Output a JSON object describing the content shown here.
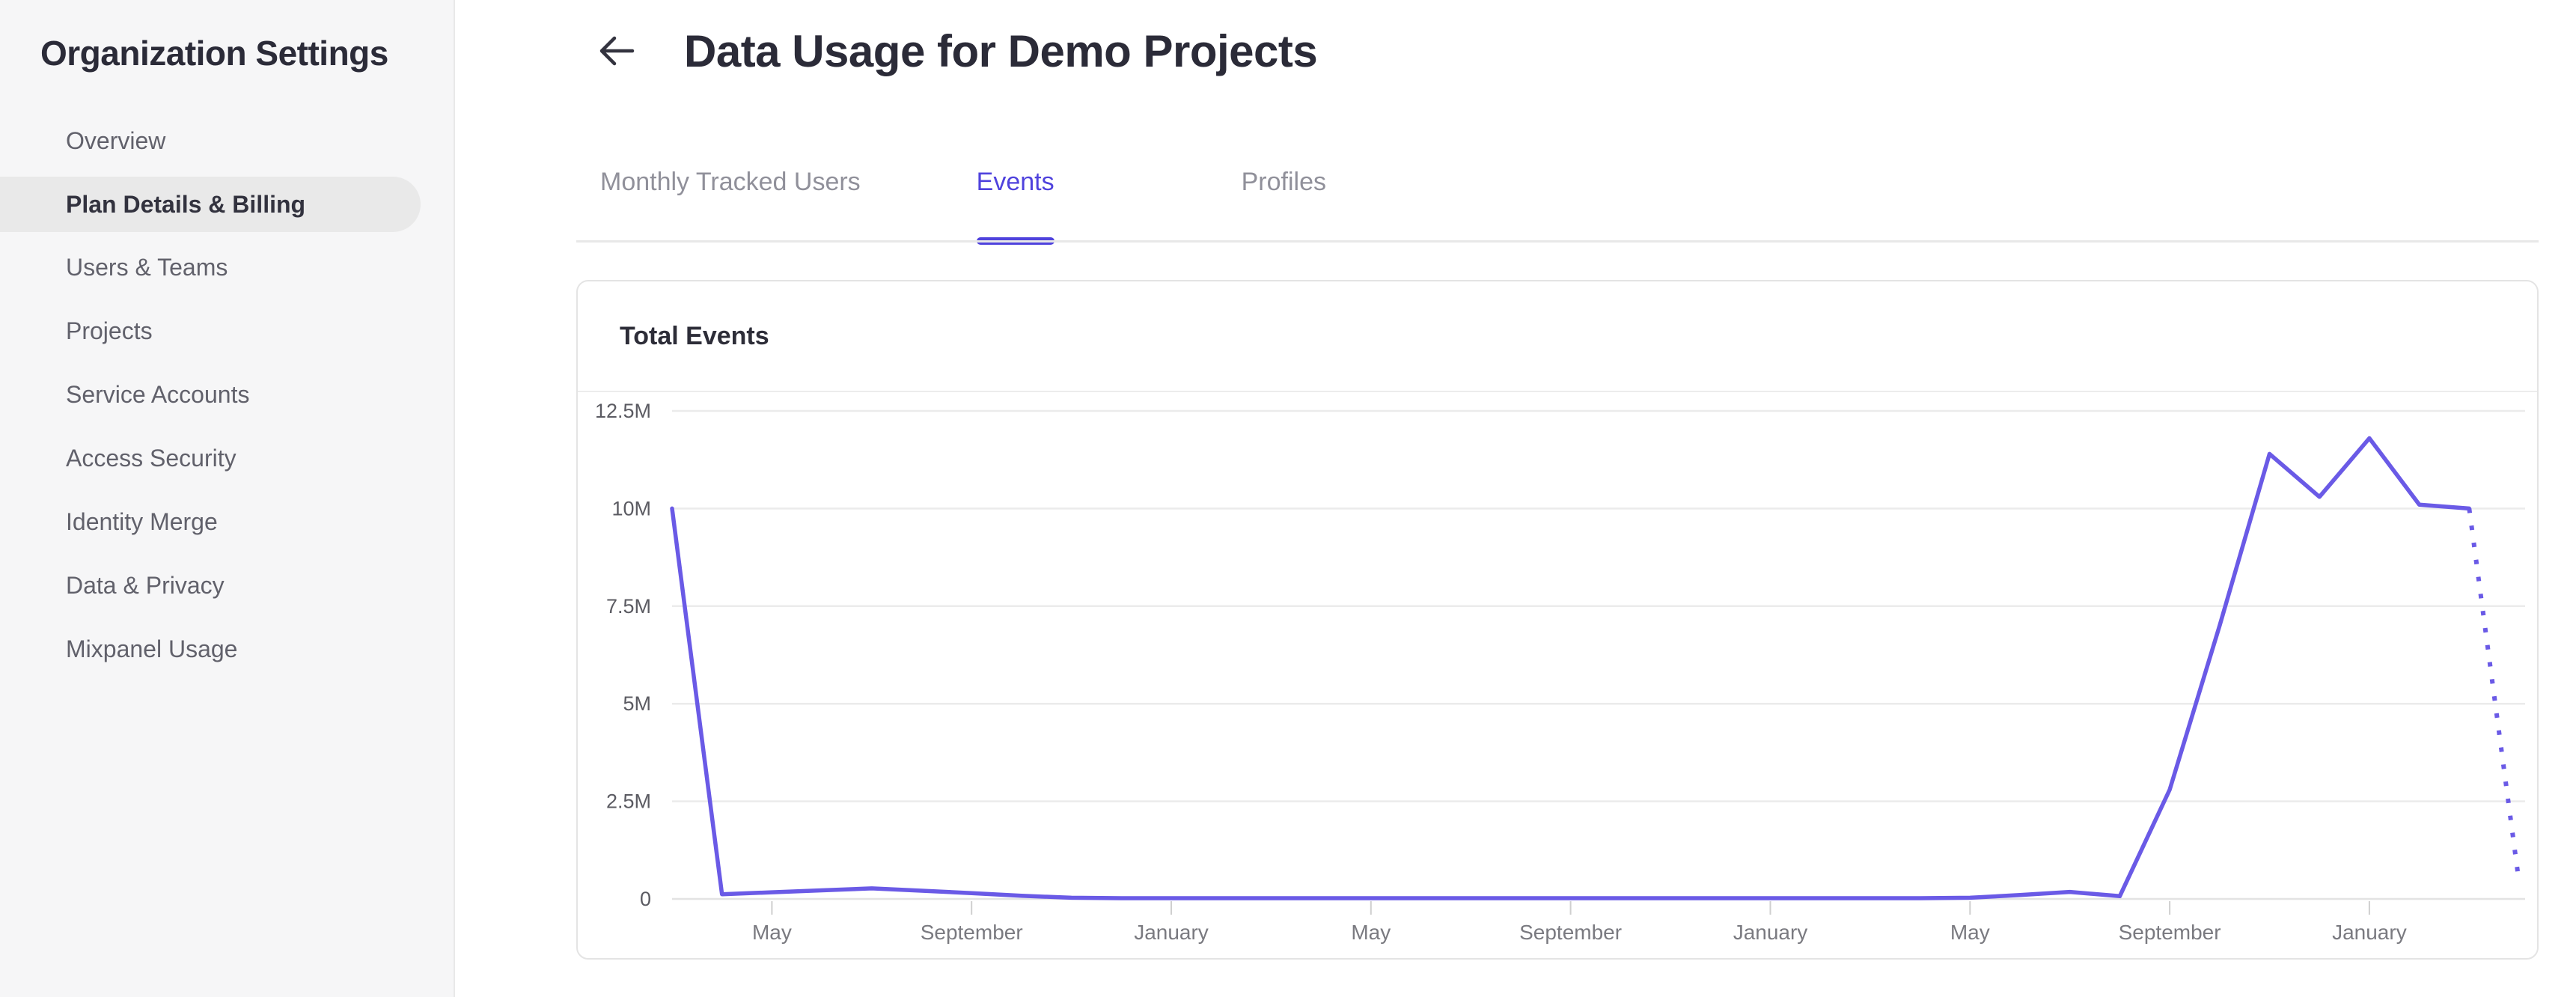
{
  "sidebar": {
    "title": "Organization Settings",
    "items": [
      {
        "label": "Overview",
        "active": false
      },
      {
        "label": "Plan Details & Billing",
        "active": true
      },
      {
        "label": "Users & Teams",
        "active": false
      },
      {
        "label": "Projects",
        "active": false
      },
      {
        "label": "Service Accounts",
        "active": false
      },
      {
        "label": "Access Security",
        "active": false
      },
      {
        "label": "Identity Merge",
        "active": false
      },
      {
        "label": "Data & Privacy",
        "active": false
      },
      {
        "label": "Mixpanel Usage",
        "active": false
      }
    ]
  },
  "header": {
    "title": "Data Usage for Demo Projects",
    "back_icon": "left-arrow"
  },
  "tabs": {
    "items": [
      {
        "label": "Monthly Tracked Users",
        "active": false
      },
      {
        "label": "Events",
        "active": true
      },
      {
        "label": "Profiles",
        "active": false
      }
    ]
  },
  "colors": {
    "accent_purple": "#4f42dd",
    "line_purple": "#6a5ae6",
    "sidebar_bg": "#f6f6f7",
    "active_pill": "#e9e9e9",
    "text_dark": "#2b2b38",
    "text_gray": "#61616b",
    "tab_inactive": "#90909a",
    "grid_line": "#ebebeb",
    "zero_axis_line": "#e3e3e3",
    "tick_mark": "#cfcfcf"
  },
  "chart_data": {
    "type": "line",
    "title": "Total Events",
    "series_name": "Total Events",
    "x_unit": "month",
    "x_tick_labels": [
      "May",
      "September",
      "January",
      "May",
      "September",
      "January",
      "May",
      "September",
      "January"
    ],
    "x_tick_indices": [
      2,
      6,
      10,
      14,
      18,
      22,
      26,
      30,
      34
    ],
    "y_tick_labels": [
      "0",
      "2.5M",
      "5M",
      "7.5M",
      "10M",
      "12.5M"
    ],
    "y_tick_values_millions": [
      0,
      2.5,
      5,
      7.5,
      10,
      12.5
    ],
    "ylim_millions": [
      0,
      12.5
    ],
    "values_millions": [
      10,
      0.12,
      0.17,
      0.22,
      0.27,
      0.21,
      0.15,
      0.08,
      0.03,
      0.02,
      0.02,
      0.02,
      0.02,
      0.02,
      0.02,
      0.02,
      0.02,
      0.02,
      0.02,
      0.02,
      0.02,
      0.02,
      0.02,
      0.02,
      0.02,
      0.02,
      0.03,
      0.1,
      0.18,
      0.07,
      2.8,
      7,
      11.4,
      10.3,
      11.8,
      10.1,
      10,
      0.42
    ],
    "dotted_from_index": 36,
    "legend": "none",
    "grid": "horizontal"
  }
}
